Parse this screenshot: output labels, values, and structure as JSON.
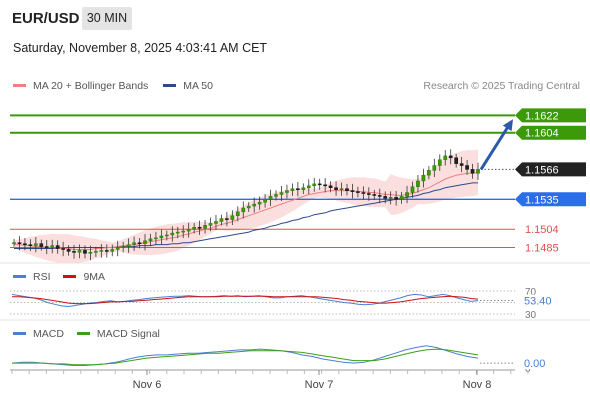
{
  "header": {
    "symbol": "EUR/USD",
    "timeframe": "30 MIN",
    "datetime": "Saturday, November 8, 2025 4:03:41 AM CET"
  },
  "legends": {
    "main": [
      {
        "label": "MA 20 + Bollinger Bands",
        "color": "#f08080"
      },
      {
        "label": "MA 50",
        "color": "#2b4b8c"
      }
    ],
    "rsi": [
      {
        "label": "RSI",
        "color": "#4a7fd4"
      },
      {
        "label": "9MA",
        "color": "#d01010"
      }
    ],
    "macd": [
      {
        "label": "MACD",
        "color": "#4a7fd4"
      },
      {
        "label": "MACD Signal",
        "color": "#3aa01a"
      }
    ]
  },
  "credit": "Research © 2025 Trading Central",
  "chart_data": {
    "type": "candlestick",
    "x_ticks": [
      "Nov 6",
      "Nov 7",
      "Nov 8"
    ],
    "price_range": [
      1.147,
      1.164
    ],
    "last_price": {
      "value": 1.1566,
      "label": "1.1566",
      "color": "#222222"
    },
    "levels": [
      {
        "value": 1.1622,
        "label": "1.1622",
        "color": "#3c9a0a",
        "kind": "resistance"
      },
      {
        "value": 1.1604,
        "label": "1.1604",
        "color": "#3c9a0a",
        "kind": "resistance"
      },
      {
        "value": 1.1535,
        "label": "1.1535",
        "color": "#2a6ee8",
        "kind": "pivot"
      },
      {
        "value": 1.1504,
        "label": "1.1504",
        "color": "#e05050",
        "kind": "support"
      },
      {
        "value": 1.1485,
        "label": "1.1485",
        "color": "#e05050",
        "kind": "support"
      }
    ],
    "close_series": [
      1.149,
      1.1489,
      1.1488,
      1.1487,
      1.1489,
      1.1486,
      1.1485,
      1.1487,
      1.1484,
      1.1483,
      1.1481,
      1.148,
      1.1482,
      1.1479,
      1.148,
      1.1481,
      1.1482,
      1.1481,
      1.1483,
      1.1485,
      1.1486,
      1.1488,
      1.149,
      1.1489,
      1.1492,
      1.1494,
      1.1495,
      1.1497,
      1.1498,
      1.15,
      1.1501,
      1.1502,
      1.1504,
      1.1506,
      1.1505,
      1.1508,
      1.151,
      1.1512,
      1.1515,
      1.1514,
      1.1518,
      1.1522,
      1.1526,
      1.1528,
      1.153,
      1.1532,
      1.1535,
      1.1538,
      1.154,
      1.1542,
      1.1544,
      1.1546,
      1.1545,
      1.1547,
      1.1549,
      1.1551,
      1.155,
      1.1549,
      1.1547,
      1.1545,
      1.1546,
      1.1544,
      1.1543,
      1.1542,
      1.1541,
      1.154,
      1.1539,
      1.1538,
      1.1536,
      1.1537,
      1.1535,
      1.1538,
      1.1542,
      1.1548,
      1.1554,
      1.156,
      1.1565,
      1.157,
      1.1576,
      1.158,
      1.1578,
      1.1572,
      1.157,
      1.1566,
      1.1562,
      1.1566
    ],
    "ma20_series": [
      1.1488,
      1.1488,
      1.1487,
      1.1487,
      1.1486,
      1.1486,
      1.1485,
      1.1485,
      1.1484,
      1.1484,
      1.1484,
      1.1483,
      1.1483,
      1.1483,
      1.1483,
      1.1484,
      1.1484,
      1.1485,
      1.1485,
      1.1486,
      1.1487,
      1.1487,
      1.1488,
      1.1489,
      1.149,
      1.1491,
      1.1492,
      1.1493,
      1.1494,
      1.1495,
      1.1496,
      1.1498,
      1.1499,
      1.1501,
      1.1502,
      1.1504,
      1.1505,
      1.1507,
      1.1509,
      1.151,
      1.1512,
      1.1514,
      1.1516,
      1.1518,
      1.152,
      1.1522,
      1.1524,
      1.1526,
      1.1528,
      1.153,
      1.1532,
      1.1534,
      1.1536,
      1.1538,
      1.154,
      1.1541,
      1.1542,
      1.1543,
      1.1544,
      1.1544,
      1.1544,
      1.1544,
      1.1544,
      1.1543,
      1.1543,
      1.1542,
      1.1542,
      1.1541,
      1.154,
      1.154,
      1.1539,
      1.1539,
      1.154,
      1.1541,
      1.1543,
      1.1545,
      1.1547,
      1.155,
      1.1553,
      1.1556,
      1.1558,
      1.156,
      1.1561,
      1.1562,
      1.1562,
      1.1563
    ],
    "ma50_series": [
      1.1484,
      1.1484,
      1.1484,
      1.1484,
      1.1484,
      1.1484,
      1.1484,
      1.1484,
      1.1484,
      1.1484,
      1.1485,
      1.1485,
      1.1485,
      1.1485,
      1.1485,
      1.1485,
      1.1485,
      1.1485,
      1.1485,
      1.1486,
      1.1486,
      1.1486,
      1.1486,
      1.1487,
      1.1487,
      1.1487,
      1.1488,
      1.1488,
      1.1488,
      1.1489,
      1.1489,
      1.149,
      1.149,
      1.1491,
      1.1492,
      1.1493,
      1.1494,
      1.1495,
      1.1496,
      1.1497,
      1.1498,
      1.1499,
      1.15,
      1.1501,
      1.1503,
      1.1504,
      1.1505,
      1.1507,
      1.1508,
      1.151,
      1.1511,
      1.1513,
      1.1514,
      1.1516,
      1.1517,
      1.1519,
      1.152,
      1.1521,
      1.1523,
      1.1524,
      1.1525,
      1.1526,
      1.1527,
      1.1528,
      1.1529,
      1.153,
      1.1531,
      1.1532,
      1.1533,
      1.1534,
      1.1535,
      1.1536,
      1.1537,
      1.1538,
      1.1539,
      1.1541,
      1.1542,
      1.1544,
      1.1545,
      1.1547,
      1.1548,
      1.1549,
      1.155,
      1.1551,
      1.1552,
      1.1552
    ],
    "forecast_arrow": {
      "from_price": 1.1566,
      "to_price": 1.1618,
      "color": "#2b5aa8"
    },
    "rsi": {
      "value": 53.4,
      "label": "53.40",
      "levels": [
        70,
        50,
        30
      ],
      "level_labels": [
        "70",
        "30"
      ],
      "series": [
        64,
        62,
        60,
        58,
        55,
        50,
        47,
        44,
        43,
        45,
        47,
        49,
        50,
        52,
        53,
        51,
        52,
        54,
        55,
        57,
        58,
        59,
        60,
        61,
        61,
        62,
        61,
        60,
        60,
        61,
        62,
        61,
        62,
        60,
        61,
        62,
        60,
        58,
        58,
        60,
        61,
        62,
        60,
        58,
        56,
        54,
        52,
        50,
        49,
        47,
        46,
        47,
        49,
        52,
        55,
        58,
        62,
        64,
        63,
        60,
        62,
        64,
        62,
        58,
        55,
        52,
        53.4
      ],
      "ma_series": [
        60,
        60,
        59,
        58,
        57,
        55,
        53,
        51,
        49,
        48,
        48,
        48,
        49,
        50,
        51,
        51,
        52,
        52,
        53,
        54,
        55,
        56,
        57,
        58,
        59,
        60,
        60,
        60,
        60,
        60,
        61,
        61,
        61,
        61,
        61,
        61,
        61,
        60,
        60,
        60,
        60,
        60,
        60,
        60,
        59,
        58,
        57,
        55,
        54,
        52,
        51,
        50,
        49,
        49,
        50,
        51,
        53,
        55,
        57,
        58,
        59,
        60,
        61,
        60,
        59,
        57,
        56
      ]
    },
    "macd": {
      "value": 0.0,
      "label": "0.00",
      "zero_label": "0",
      "series": [
        0.0,
        0.0001,
        0.0001,
        0.0,
        -0.0001,
        -0.0002,
        -0.0003,
        -0.0003,
        -0.0002,
        -0.0001,
        0.0001,
        0.0004,
        0.0007,
        0.0009,
        0.001,
        0.001,
        0.0011,
        0.0012,
        0.0012,
        0.0013,
        0.0014,
        0.0015,
        0.0016,
        0.0016,
        0.0017,
        0.0016,
        0.0015,
        0.0013,
        0.001,
        0.0008,
        0.0005,
        0.0003,
        0.0001,
        0.0,
        0.0001,
        0.0004,
        0.0008,
        0.0012,
        0.0016,
        0.0019,
        0.0021,
        0.0019,
        0.0015,
        0.0011,
        0.0008,
        0.0006
      ],
      "signal_series": [
        0.0,
        0.0,
        0.0,
        0.0,
        -0.0001,
        -0.0001,
        -0.0002,
        -0.0002,
        -0.0002,
        -0.0001,
        0.0,
        0.0002,
        0.0004,
        0.0006,
        0.0007,
        0.0008,
        0.0009,
        0.001,
        0.0011,
        0.0012,
        0.0012,
        0.0013,
        0.0014,
        0.0015,
        0.0015,
        0.0015,
        0.0015,
        0.0014,
        0.0013,
        0.0011,
        0.0009,
        0.0007,
        0.0005,
        0.0003,
        0.0003,
        0.0003,
        0.0005,
        0.0008,
        0.0011,
        0.0014,
        0.0016,
        0.0017,
        0.0016,
        0.0014,
        0.0012,
        0.001
      ]
    }
  }
}
